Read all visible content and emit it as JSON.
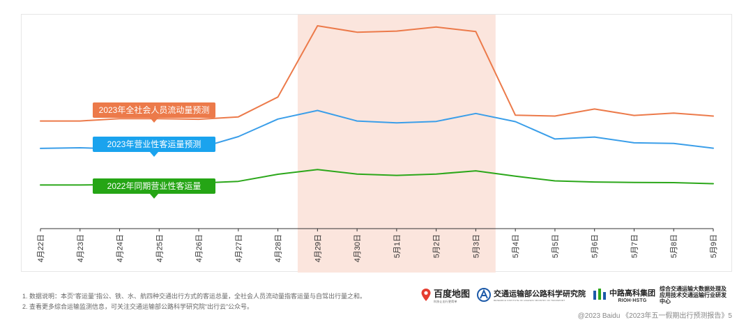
{
  "chart_data": {
    "type": "line",
    "categories": [
      "4月22日",
      "4月23日",
      "4月24日",
      "4月25日",
      "4月26日",
      "4月27日",
      "4月28日",
      "4月29日",
      "4月30日",
      "5月1日",
      "5月2日",
      "5月3日",
      "5月4日",
      "5月5日",
      "5月6日",
      "5月7日",
      "5月8日",
      "5月9日"
    ],
    "highlight_range": [
      "4月29日",
      "5月3日"
    ],
    "ylim": [
      0,
      100
    ],
    "grid": false,
    "series": [
      {
        "name": "2023年全社会人员流动量预测",
        "color": "#ec7a4a",
        "values": [
          50.3,
          50.3,
          51.4,
          51.4,
          51.1,
          52.2,
          61.5,
          94.8,
          91.8,
          92.3,
          94.2,
          92.1,
          53.0,
          52.6,
          55.9,
          52.9,
          54.0,
          52.6
        ]
      },
      {
        "name": "2023年营业性客运量预测",
        "color": "#3a9ee9",
        "values": [
          37.5,
          37.8,
          37.2,
          37.8,
          37.6,
          43.0,
          51.2,
          55.2,
          50.3,
          49.4,
          50.1,
          53.8,
          50.0,
          41.9,
          42.8,
          40.1,
          39.8,
          37.6
        ]
      },
      {
        "name": "2022年同期营业性客运量",
        "color": "#2ba71a",
        "values": [
          20.4,
          20.4,
          20.6,
          20.8,
          21.3,
          22.1,
          25.4,
          27.6,
          25.5,
          24.9,
          25.5,
          27.0,
          24.5,
          22.3,
          21.8,
          21.6,
          21.5,
          21.0
        ]
      }
    ]
  },
  "notes": [
    "1. 数据说明：本页“客运量”指公、铁、水、航四种交通出行方式的客运总量，全社会人员流动量指客运量与自驾出行量之和。",
    "2. 查看更多综合运输监测信息，可关注交通运输部公路科学研究院“出行云”公众号。"
  ],
  "logos": {
    "baidu": {
      "name": "百度地图",
      "sub": "科技让出行更简单"
    },
    "rioh": {
      "name": "交通运输部公路科学研究院",
      "sub": "RESEARCH INSTITUTE OF HIGHWAY MINISTRY OF TRANSPORT"
    },
    "hstg": {
      "name": "中路高科集团",
      "sub": "RIOH·HSTG",
      "center": "综合交通运输大数据处理及应用技术交通运输行业研发中心"
    }
  },
  "footer": "@2023 Baidu 《2023年五一假期出行预测报告》5",
  "colors": {
    "highlight": "#fbe5dd",
    "axis": "#333333"
  }
}
